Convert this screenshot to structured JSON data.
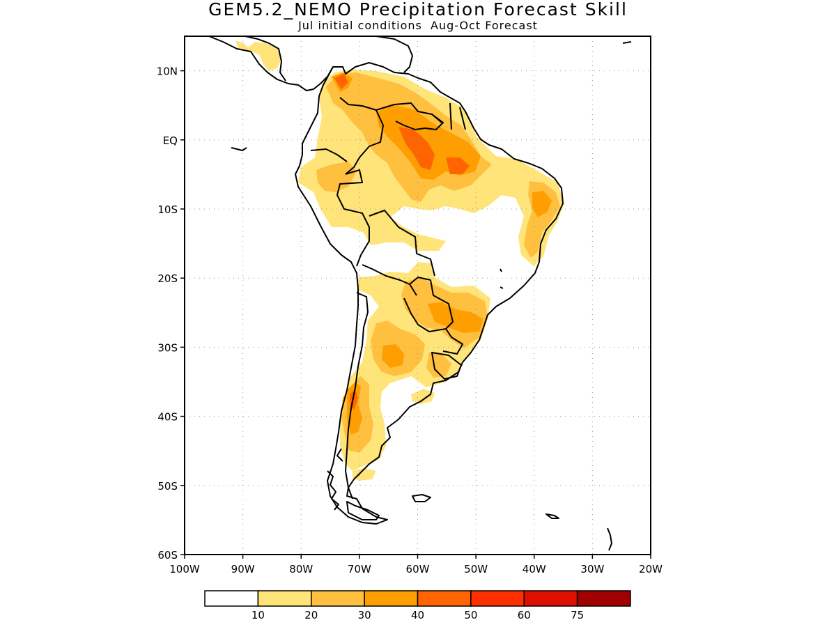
{
  "title": "GEM5.2_NEMO Precipitation Forecast Skill",
  "subtitle": "Jul initial conditions  Aug-Oct Forecast",
  "map": {
    "lon_range": [
      -100,
      -20
    ],
    "lat_range": [
      -60,
      15
    ],
    "grid": "dotted",
    "lat_ticks": [
      {
        "lat": 10,
        "label": "10N"
      },
      {
        "lat": 0,
        "label": "EQ"
      },
      {
        "lat": -10,
        "label": "10S"
      },
      {
        "lat": -20,
        "label": "20S"
      },
      {
        "lat": -30,
        "label": "30S"
      },
      {
        "lat": -40,
        "label": "40S"
      },
      {
        "lat": -50,
        "label": "50S"
      },
      {
        "lat": -60,
        "label": "60S"
      }
    ],
    "lon_ticks": [
      {
        "lon": -100,
        "label": "100W"
      },
      {
        "lon": -90,
        "label": "90W"
      },
      {
        "lon": -80,
        "label": "80W"
      },
      {
        "lon": -70,
        "label": "70W"
      },
      {
        "lon": -60,
        "label": "60W"
      },
      {
        "lon": -50,
        "label": "50W"
      },
      {
        "lon": -40,
        "label": "40W"
      },
      {
        "lon": -30,
        "label": "30W"
      },
      {
        "lon": -20,
        "label": "20W"
      }
    ]
  },
  "legend": {
    "colors": [
      "#ffffff",
      "#ffe47a",
      "#ffbf3f",
      "#ff9e00",
      "#ff6400",
      "#ff3000",
      "#dd1000",
      "#a00000"
    ],
    "labels": [
      "10",
      "20",
      "30",
      "40",
      "50",
      "60",
      "75"
    ]
  },
  "colors": {
    "coast": "#000000",
    "frame": "#000000",
    "grid": "#999999"
  }
}
